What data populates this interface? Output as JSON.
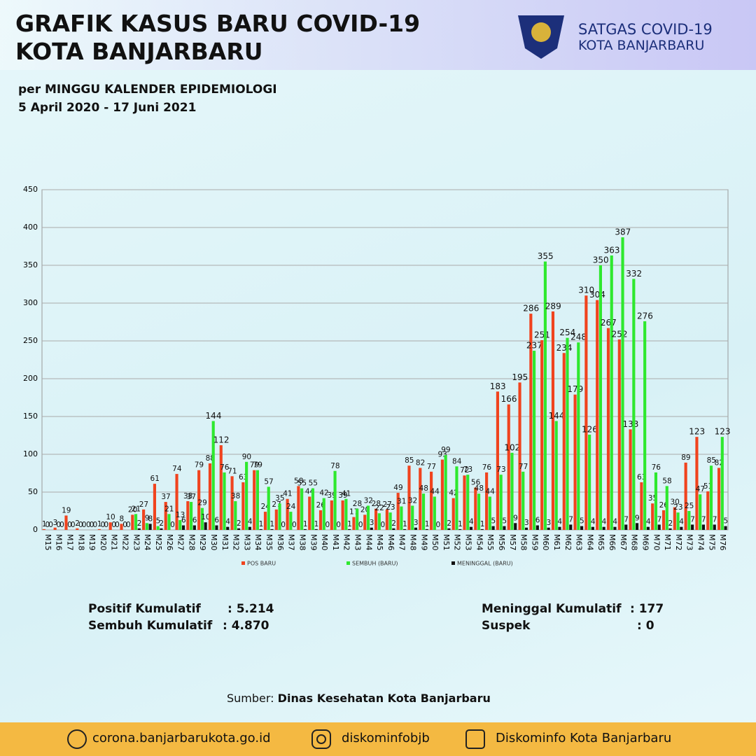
{
  "header": {
    "title_line1": "GRAFIK KASUS BARU COVID-19",
    "title_line2": "KOTA BANJARBARU",
    "subtitle_line1": "per MINGGU KALENDER EPIDEMIOLOGI",
    "subtitle_line2": "5 April 2020 - 17 Juni 2021",
    "org_line1": "SATGAS COVID-19",
    "org_line2": "KOTA BANJARBARU"
  },
  "chart_data": {
    "type": "bar",
    "categories": [
      "M15",
      "M16",
      "M17",
      "M18",
      "M19",
      "M20",
      "M21",
      "M22",
      "M23",
      "M24",
      "M25",
      "M26",
      "M27",
      "M28",
      "M29",
      "M30",
      "M31",
      "M32",
      "M33",
      "M34",
      "M35",
      "M36",
      "M37",
      "M38",
      "M39",
      "M40",
      "M41",
      "M42",
      "M43",
      "M44",
      "M45",
      "M46",
      "M47",
      "M48",
      "M49",
      "M50",
      "M51",
      "M52",
      "M53",
      "M54",
      "M55",
      "M56",
      "M57",
      "M58",
      "M59",
      "M60",
      "M61",
      "M62",
      "M63",
      "M64",
      "M65",
      "M66",
      "M67",
      "M68",
      "M69",
      "M70",
      "M71",
      "M72",
      "M73",
      "M74",
      "M75",
      "M76"
    ],
    "series": [
      {
        "name": "POS BARU",
        "color": "#f0431e",
        "values": [
          1,
          3,
          19,
          2,
          0,
          1,
          10,
          8,
          20,
          27,
          61,
          37,
          74,
          38,
          79,
          88,
          112,
          71,
          63,
          79,
          24,
          27,
          41,
          58,
          44,
          26,
          39,
          39,
          17,
          20,
          28,
          27,
          49,
          85,
          82,
          77,
          93,
          42,
          72,
          56,
          76,
          183,
          166,
          195,
          286,
          251,
          289,
          234,
          179,
          310,
          304,
          267,
          252,
          133,
          63,
          35,
          26,
          30,
          89,
          123,
          51,
          82
        ]
      },
      {
        "name": "SEMBUH (BARU)",
        "color": "#2ee82e",
        "values": [
          0,
          0,
          0,
          0,
          0,
          0,
          0,
          0,
          21,
          9,
          5,
          21,
          13,
          37,
          29,
          144,
          76,
          38,
          90,
          79,
          57,
          35,
          24,
          55,
          55,
          42,
          78,
          41,
          28,
          32,
          22,
          23,
          31,
          32,
          48,
          44,
          99,
          84,
          73,
          48,
          44,
          73,
          102,
          77,
          237,
          355,
          144,
          254,
          248,
          126,
          350,
          363,
          387,
          332,
          276,
          76,
          58,
          23,
          25,
          47,
          85,
          123
        ]
      },
      {
        "name": "MENINGGAL (BARU)",
        "color": "#111111",
        "values": [
          0,
          0,
          0,
          0,
          0,
          0,
          0,
          0,
          2,
          8,
          2,
          0,
          6,
          6,
          10,
          6,
          4,
          2,
          4,
          1,
          1,
          0,
          0,
          1,
          1,
          0,
          0,
          1,
          0,
          3,
          0,
          2,
          1,
          3,
          1,
          0,
          2,
          1,
          4,
          1,
          5,
          5,
          9,
          3,
          6,
          3,
          4,
          7,
          5,
          4,
          4,
          4,
          7,
          9,
          4,
          7,
          2,
          4,
          7,
          7,
          7,
          5
        ]
      }
    ],
    "ylim": [
      0,
      450
    ],
    "yticks": [
      0,
      50,
      100,
      150,
      200,
      250,
      300,
      350,
      400,
      450
    ],
    "grid": true,
    "legend": "bottom"
  },
  "stats": {
    "positif_label": "Positif Kumulatif",
    "positif_value": ": 5.214",
    "sembuh_label": "Sembuh Kumulatif",
    "sembuh_value": ": 4.870",
    "meninggal_label": "Meninggal Kumulatif",
    "meninggal_value": ":  177",
    "suspek_label": "Suspek",
    "suspek_value": ":  0"
  },
  "source": {
    "label": "Sumber:",
    "value": "Dinas Kesehatan Kota Banjarbaru"
  },
  "footer": {
    "website": "corona.banjarbarukota.go.id",
    "instagram": "diskominfobjb",
    "facebook": "Diskominfo Kota Banjarbaru"
  }
}
